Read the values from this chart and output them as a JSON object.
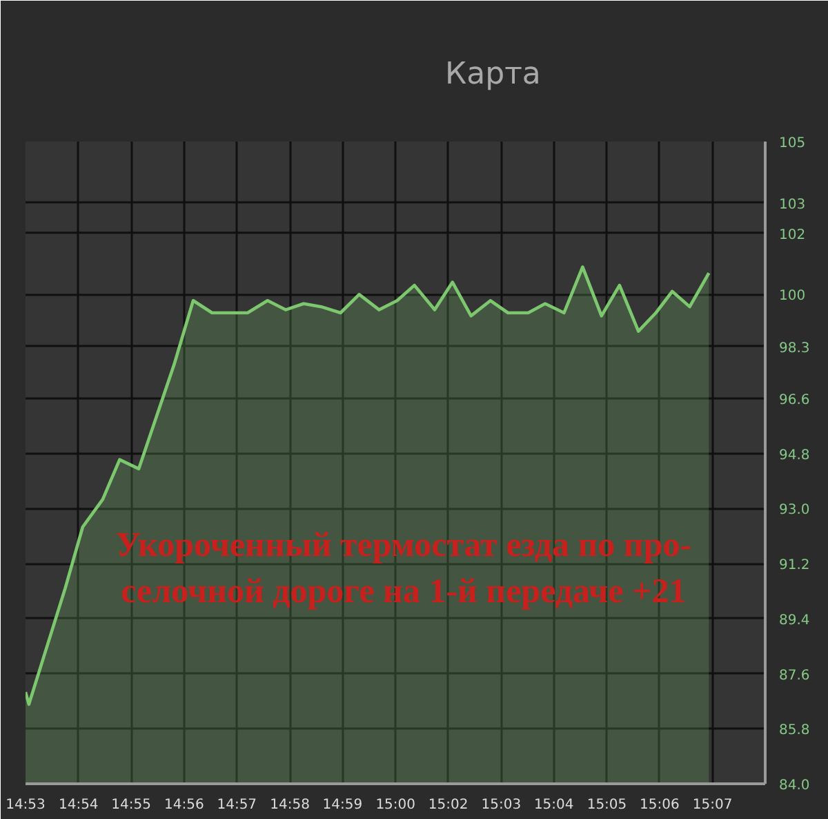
{
  "chart_data": {
    "type": "area",
    "title": "Карта",
    "annotations": [
      "Укороченный термостат езда по про-\nселочной дороге на 1-й передаче +21"
    ],
    "x": [
      14.876,
      14.8772,
      14.8901,
      14.8963,
      14.9034,
      14.9094,
      14.9162,
      14.9287,
      14.9355,
      14.9422,
      14.9548,
      14.9619,
      14.9683,
      14.9747,
      14.9809,
      14.9878,
      14.9944,
      15.0015,
      15.0079,
      15.014,
      15.0212,
      15.0275,
      15.0341,
      15.041,
      15.0472,
      15.0544,
      15.0604,
      15.0671,
      15.0737,
      15.0804,
      15.0868,
      15.0935,
      15.0997,
      15.1055,
      15.1117,
      15.1185
    ],
    "series": [
      {
        "color": "#7dc86f",
        "values": [
          87.0,
          86.6,
          90.4,
          92.4,
          93.3,
          94.6,
          94.3,
          97.7,
          99.8,
          99.4,
          99.4,
          99.8,
          99.5,
          99.7,
          99.6,
          99.4,
          100.0,
          99.5,
          99.8,
          100.3,
          99.5,
          100.4,
          99.3,
          99.8,
          99.4,
          99.4,
          99.7,
          99.4,
          100.9,
          99.3,
          100.3,
          98.8,
          99.4,
          100.1,
          99.6,
          100.7
        ]
      }
    ],
    "xlim": [
      14.876,
      15.1385
    ],
    "xticks": [
      {
        "value": 14.876,
        "label": "14:53"
      },
      {
        "value": 14.8948,
        "label": "14:54"
      },
      {
        "value": 14.9135,
        "label": "14:55"
      },
      {
        "value": 14.9323,
        "label": "14:56"
      },
      {
        "value": 14.951,
        "label": "14:57"
      },
      {
        "value": 14.9698,
        "label": "14:58"
      },
      {
        "value": 14.9885,
        "label": "14:59"
      },
      {
        "value": 15.0073,
        "label": "15:00"
      },
      {
        "value": 15.026,
        "label": "15:02"
      },
      {
        "value": 15.0448,
        "label": "15:03"
      },
      {
        "value": 15.0635,
        "label": "15:04"
      },
      {
        "value": 15.0823,
        "label": "15:05"
      },
      {
        "value": 15.101,
        "label": "15:06"
      },
      {
        "value": 15.1198,
        "label": "15:07"
      }
    ],
    "ylim": [
      84,
      105
    ],
    "yticks": [
      {
        "value": 84,
        "label": "84.0"
      },
      85.8,
      87.6,
      89.4,
      91.2,
      {
        "value": 93,
        "label": "93.0"
      },
      94.8,
      96.6,
      98.3,
      100,
      102,
      103,
      105
    ],
    "grid": true
  }
}
